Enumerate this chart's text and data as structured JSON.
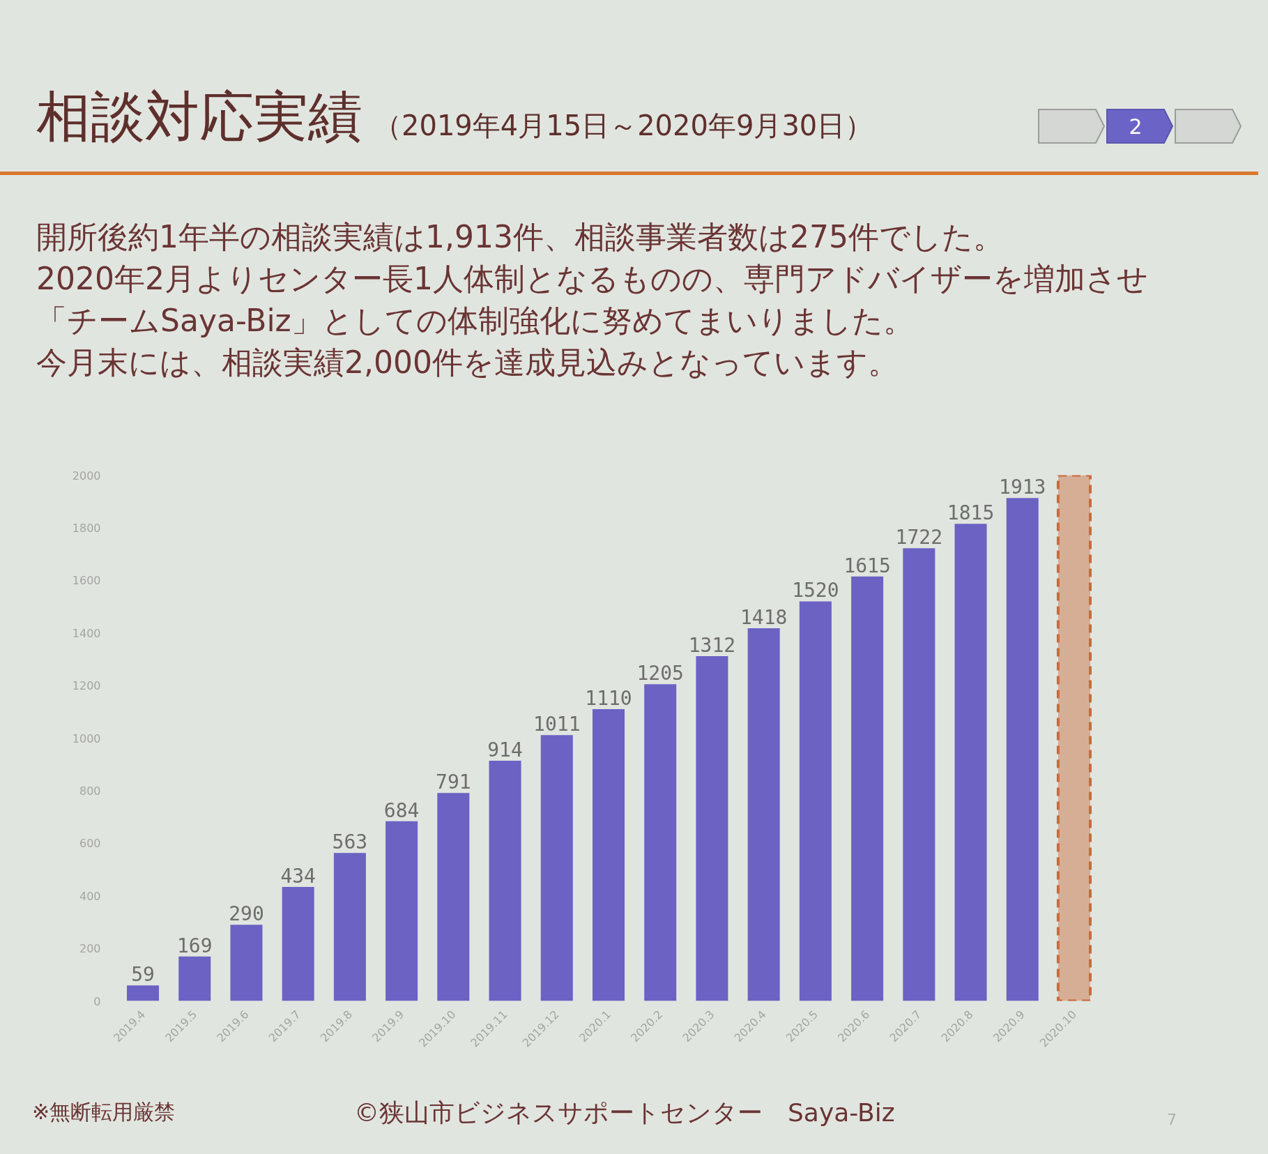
{
  "chart_data": {
    "type": "bar",
    "title": "相談対応実績",
    "subtitle": "（2019年4月15日～2020年9月30日）",
    "annotations": [
      "開所後約1年半の相談実績は1,913件、相談事業者数は275件でした。",
      "2020年2月よりセンター長1人体制となるものの、専門アドバイザーを増加させ",
      "「チームSaya-Biz」としての体制強化に努めてまいりました。",
      "今月末には、相談実績2,000件を達成見込みとなっています。",
      "※無断転用厳禁",
      "©狭山市ビジネスサポートセンター　Saya-Biz",
      "2",
      "7"
    ],
    "categories": [
      "2019.4",
      "2019.5",
      "2019.6",
      "2019.7",
      "2019.8",
      "2019.9",
      "2019.10",
      "2019.11",
      "2019.12",
      "2020.1",
      "2020.2",
      "2020.3",
      "2020.4",
      "2020.5",
      "2020.6",
      "2020.7",
      "2020.8",
      "2020.9",
      "2020.10"
    ],
    "series": [
      {
        "color": "#6b62c4",
        "values": [
          59,
          169,
          290,
          434,
          563,
          684,
          791,
          914,
          1011,
          1110,
          1205,
          1312,
          1418,
          1520,
          1615,
          1722,
          1815,
          1913,
          null
        ],
        "value_labels": [
          "59",
          "169",
          "290",
          "434",
          "563",
          "684",
          "791",
          "914",
          "1011",
          "1110",
          "1205",
          "1312",
          "1418",
          "1520",
          "1615",
          "1722",
          "1815",
          "1913",
          null
        ]
      },
      {
        "color": "#c96a3c",
        "line_style": "dashed",
        "values": [
          null,
          null,
          null,
          null,
          null,
          null,
          null,
          null,
          null,
          null,
          null,
          null,
          null,
          null,
          null,
          null,
          null,
          null,
          2000
        ]
      }
    ],
    "stacked": true,
    "ylim": [
      0,
      2000
    ],
    "yticks": [
      0,
      200,
      400,
      600,
      800,
      1000,
      1200,
      1400,
      1600,
      1800,
      2000
    ],
    "grid": false
  }
}
